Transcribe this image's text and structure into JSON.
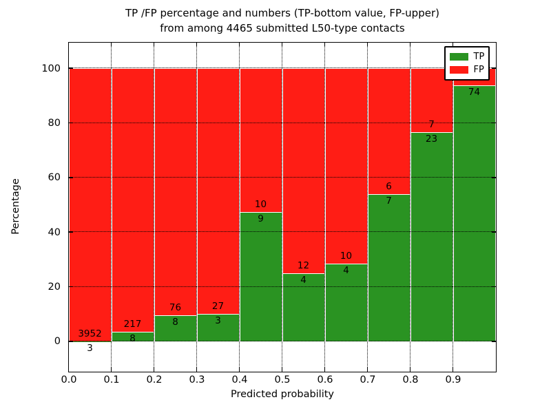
{
  "title": {
    "line1": "TP /FP percentage and numbers (TP-bottom value, FP-upper)",
    "line2": "from among 4465 submitted L50-type contacts"
  },
  "chart_data": {
    "type": "bar",
    "stacked": true,
    "normalized": "percentage",
    "title": "TP /FP percentage and numbers (TP-bottom value, FP-upper) from among 4465 submitted L50-type contacts",
    "xlabel": "Predicted probability",
    "ylabel": "Percentage",
    "xlim": [
      0.0,
      1.0
    ],
    "ylim": [
      -11,
      109.5
    ],
    "grid": true,
    "x_ticks": [
      "0.0",
      "0.1",
      "0.2",
      "0.3",
      "0.4",
      "0.5",
      "0.6",
      "0.7",
      "0.8",
      "0.9"
    ],
    "y_ticks": [
      "0",
      "20",
      "40",
      "60",
      "80",
      "100"
    ],
    "legend": {
      "position": "upper right",
      "entries": [
        {
          "label": "TP",
          "color": "#2A9322"
        },
        {
          "label": "FP",
          "color": "#FF1D15"
        }
      ]
    },
    "colors": {
      "tp": "#2A9322",
      "fp": "#FF1D15",
      "bar_edge": "#FFFFFF",
      "grid": "#000000"
    },
    "bins": [
      {
        "range": [
          0.0,
          0.1
        ],
        "tp": 3,
        "fp": 3952
      },
      {
        "range": [
          0.1,
          0.2
        ],
        "tp": 8,
        "fp": 217
      },
      {
        "range": [
          0.2,
          0.3
        ],
        "tp": 8,
        "fp": 76
      },
      {
        "range": [
          0.3,
          0.4
        ],
        "tp": 3,
        "fp": 27
      },
      {
        "range": [
          0.4,
          0.5
        ],
        "tp": 9,
        "fp": 10
      },
      {
        "range": [
          0.5,
          0.6
        ],
        "tp": 4,
        "fp": 12
      },
      {
        "range": [
          0.6,
          0.7
        ],
        "tp": 4,
        "fp": 10
      },
      {
        "range": [
          0.7,
          0.8
        ],
        "tp": 7,
        "fp": 6
      },
      {
        "range": [
          0.8,
          0.9
        ],
        "tp": 23,
        "fp": 7
      },
      {
        "range": [
          0.9,
          1.0
        ],
        "tp": 74,
        "fp": 5
      }
    ]
  }
}
